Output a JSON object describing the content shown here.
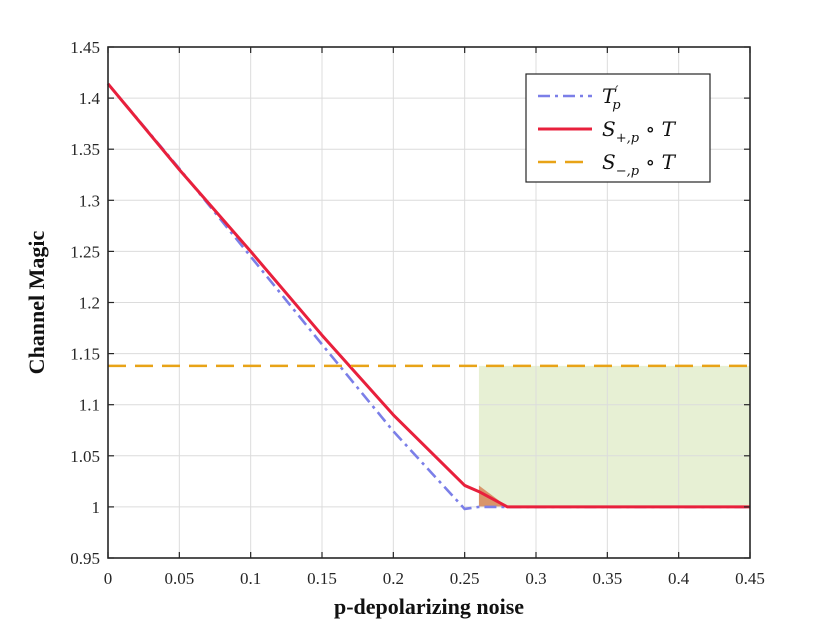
{
  "chart_data": {
    "type": "line",
    "xlabel": "p-depolarizing noise",
    "ylabel": "Channel Magic",
    "xlim": [
      0,
      0.45
    ],
    "ylim": [
      0.95,
      1.45
    ],
    "x_ticks": [
      "0",
      "0.05",
      "0.1",
      "0.15",
      "0.2",
      "0.25",
      "0.3",
      "0.35",
      "0.4",
      "0.45"
    ],
    "y_ticks": [
      "0.95",
      "1",
      "1.05",
      "1.1",
      "1.15",
      "1.2",
      "1.25",
      "1.3",
      "1.35",
      "1.4",
      "1.45"
    ],
    "grid": true,
    "legend_position": "top-right",
    "series": [
      {
        "name": "T'_p",
        "color": "#7b7fe8",
        "style": "dash-dot",
        "x": [
          0,
          0.05,
          0.1,
          0.15,
          0.2,
          0.25,
          0.26,
          0.28,
          0.3,
          0.35,
          0.4,
          0.45
        ],
        "y": [
          1.414,
          1.331,
          1.245,
          1.159,
          1.074,
          0.998,
          1.0,
          1.0,
          1.0,
          1.0,
          1.0,
          1.0
        ]
      },
      {
        "name": "S_{+,p} ∘ T",
        "color": "#e8203c",
        "style": "solid",
        "x": [
          0,
          0.05,
          0.1,
          0.15,
          0.2,
          0.25,
          0.26,
          0.28,
          0.3,
          0.35,
          0.4,
          0.45
        ],
        "y": [
          1.414,
          1.33,
          1.25,
          1.168,
          1.09,
          1.021,
          1.015,
          1.0,
          1.0,
          1.0,
          1.0,
          1.0
        ]
      },
      {
        "name": "S_{-,p} ∘ T",
        "color": "#e8a317",
        "style": "dashed",
        "x": [
          0,
          0.45
        ],
        "y": [
          1.138,
          1.138
        ]
      }
    ],
    "shaded_regions": [
      {
        "color": "#e7f0d4",
        "x": [
          0.26,
          0.45
        ],
        "y": [
          1.0,
          1.138
        ]
      },
      {
        "color": "#d9956a",
        "polygon": [
          [
            0.26,
            1.0
          ],
          [
            0.26,
            1.021
          ],
          [
            0.28,
            1.0
          ]
        ]
      }
    ],
    "legend": [
      {
        "label_main": "T",
        "label_sup": "′",
        "label_sub": "p",
        "label_rest": ""
      },
      {
        "label_main": "S",
        "label_sup": "",
        "label_sub": "+,p",
        "label_rest": " ∘ T"
      },
      {
        "label_main": "S",
        "label_sup": "",
        "label_sub": "−,p",
        "label_rest": " ∘ T"
      }
    ]
  }
}
